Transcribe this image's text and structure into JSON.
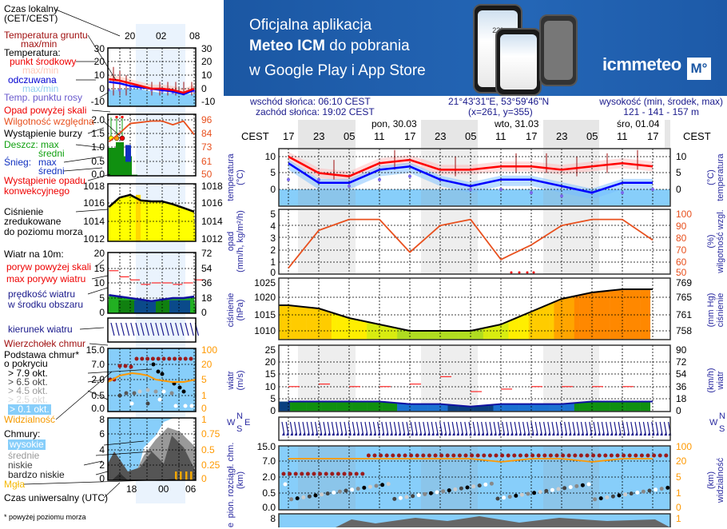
{
  "banner": {
    "line1": "Oficjalna aplikacja",
    "line2_bold": "Meteo ICM",
    "line2_rest": " do pobrania",
    "line3": "w Google Play i App Store",
    "logo": "icmmeteo",
    "logo_badge": "M°",
    "phone_temp": "23°"
  },
  "info": {
    "sunrise": "wschód słońca: 06:10 CEST",
    "sunset": "zachód słońca: 19:02 CEST",
    "coords": "21°43'31\"E, 53°59'46\"N",
    "grid": "(x=261,  y=355)",
    "elev_label": "wysokość (min, środek, max)",
    "elev_values": "121 - 141 - 157 m"
  },
  "time_axis": {
    "zone": "CEST",
    "days": [
      "pon, 30.03",
      "wto, 31.03",
      "śro, 01.04"
    ],
    "hours": [
      "17",
      "23",
      "05",
      "11",
      "17",
      "23",
      "05",
      "11",
      "17",
      "23",
      "05",
      "11",
      "17"
    ]
  },
  "axis_titles": {
    "left": [
      "temperatura\n(°C)",
      "opad\n(mm/h, kg/m²/h)",
      "ciśnienie\n(hPa)",
      "wiatr\n(m/s)",
      "pion. rozciągł. chm.\n(km)",
      "e"
    ],
    "right": [
      "(°C)\ntemperatura",
      "(%)\nwilgotność wzgl.",
      "(mm Hg)\nciśnienie",
      "(km/h)\nwiatr",
      "(km)\nwidzialność"
    ],
    "rose": [
      "W",
      "N",
      "E",
      "S"
    ]
  },
  "legend": {
    "local_time": "Czas lokalny",
    "local_zone": "(CET/CEST)",
    "ground_temp": "Temperatura gruntu",
    "ground_maxmin": "max/min",
    "temperature": "Temperatura:",
    "midpoint": "punkt środkowy",
    "t_maxmin": "max/min",
    "feels": "odczuwana",
    "f_maxmin": "max/min",
    "dew": "Temp. punktu rosy",
    "precip_over": "Opad powyżej skali",
    "humidity": "Wilgotność względna",
    "storm": "Wystąpienie burzy",
    "rain_max": "Deszcz: max",
    "rain_avg": "średni",
    "snow": "Śnieg:",
    "snow_max": "max",
    "snow_avg": "średni",
    "convective": "Wystąpienie opadu",
    "convective2": "konwekcyjnego",
    "pressure1": "Ciśnienie",
    "pressure2": "zredukowane",
    "pressure3": "do poziomu morza",
    "wind": "Wiatr na 10m:",
    "gust_over": "poryw powyżej skali",
    "gust_max": "max porywy wiatru",
    "wind_speed": "prędkość wiatru",
    "wind_speed2": "w środku obszaru",
    "wind_dir": "kierunek wiatru",
    "cloud_top": "Wierzchołek chmur",
    "cloud_base": "Podstawa chmur*",
    "cloud_base2": "o pokryciu",
    "okt": [
      "> 7.9 okt.",
      "> 6.5 okt.",
      "> 4.5 okt.",
      "> 2.5 okt.",
      "> 0.1 okt."
    ],
    "visibility": "Widzialność",
    "clouds": "Chmury:",
    "high": "wysokie",
    "mid": "średnie",
    "low": "niskie",
    "vlow": "bardzo niskie",
    "fog": "Mgła",
    "utc": "Czas uniwersalny (UTC)",
    "footnote": "* powyżej poziomu morza"
  },
  "colors": {
    "temp": "#ff0000",
    "feels": "#0000ff",
    "dew": "#7b68ee",
    "humidity": "#e8501e",
    "rain": "#109010",
    "snow": "#1030c0",
    "pressure_fill": "#ffff00",
    "wind_fill": "#109010",
    "gust": "#ff0000",
    "cloud_bg": "#87cefa",
    "visibility": "#ff9900"
  },
  "chart_data": [
    {
      "type": "line",
      "name": "mini-meteogram",
      "x_local": [
        "20",
        "02",
        "08"
      ],
      "x_utc": [
        "18",
        "00",
        "06"
      ],
      "hours": [
        16,
        18,
        20,
        22,
        0,
        2,
        4,
        6,
        8
      ],
      "temperature": {
        "left_ticks": [
          "30",
          "20",
          "10",
          "0",
          "-10"
        ],
        "ylim": [
          -10,
          30
        ],
        "mid": [
          7,
          6,
          4,
          2,
          0,
          0,
          -1,
          -3,
          0
        ],
        "feels": [
          5,
          4,
          2,
          1,
          0,
          -1,
          -2,
          -4,
          -1
        ],
        "dew": [
          -1,
          -1,
          0,
          0,
          -1,
          -2,
          -3,
          -4,
          -2
        ]
      },
      "precip": {
        "left_ticks": [
          "2.0",
          "1.5",
          "1.0",
          "0.5",
          "0.0"
        ],
        "right_ticks": [
          "96",
          "84",
          "73",
          "61",
          "50"
        ],
        "humidity": [
          78,
          85,
          93,
          94,
          95,
          95,
          92,
          95,
          84
        ],
        "rain": [
          1.0,
          1.15,
          0.7,
          0.05,
          0,
          0,
          0,
          0,
          0
        ]
      },
      "pressure": {
        "ticks": [
          "1018",
          "1016",
          "1014",
          "1012"
        ],
        "values": [
          1015.5,
          1016.5,
          1016.8,
          1016.2,
          1016.1,
          1016.1,
          1015.8,
          1015.4,
          1015.0
        ]
      },
      "wind": {
        "left_ticks": [
          "20",
          "15",
          "10",
          "5",
          "0"
        ],
        "right_ticks": [
          "72",
          "54",
          "36",
          "18",
          "0"
        ],
        "speed": [
          6,
          5.5,
          5,
          4.5,
          4,
          4.5,
          5,
          5,
          5.5
        ],
        "gusts": [
          14,
          12,
          11,
          9.5,
          10,
          10,
          9.5,
          10,
          11
        ]
      },
      "cloud_base": {
        "left_ticks": [
          "15.0",
          "7.0",
          "2.0",
          "0.5",
          "0.0"
        ],
        "right_ticks": [
          "100",
          "20",
          "5",
          "1",
          "0"
        ],
        "visibility": [
          3,
          7,
          10,
          10,
          6,
          5,
          4,
          4,
          5
        ]
      },
      "clouds": {
        "left_ticks": [
          "8",
          "6",
          "4",
          "2",
          "0"
        ],
        "right_ticks": [
          "1",
          "0.75",
          "0.5",
          "0.25",
          "0"
        ]
      }
    },
    {
      "type": "line",
      "name": "main-meteogram",
      "hours": [
        "17",
        "23",
        "05",
        "11",
        "17",
        "23",
        "05",
        "11",
        "17",
        "23",
        "05",
        "11",
        "17"
      ],
      "temperature": {
        "ticks": [
          "10",
          "5",
          "0"
        ],
        "ylim": [
          -5,
          13
        ],
        "mid": [
          10,
          5,
          4,
          8,
          9,
          6,
          6,
          7,
          7,
          6,
          7,
          8,
          7
        ],
        "feels": [
          8,
          2,
          2,
          6,
          7,
          3,
          1,
          3,
          3,
          1,
          -1,
          2,
          2
        ],
        "dew": [
          3,
          3,
          1,
          3,
          4,
          3,
          0,
          0,
          -1,
          -2,
          -1,
          -1,
          0
        ]
      },
      "precip": {
        "ticks": [
          "5",
          "4",
          "3",
          "2",
          "1",
          "0"
        ],
        "ylim": [
          0,
          5
        ],
        "humidity_ticks": [
          "100",
          "90",
          "80",
          "70",
          "60",
          "50"
        ],
        "humidity": [
          55,
          86,
          95,
          95,
          68,
          90,
          95,
          62,
          74,
          90,
          95,
          95,
          78
        ]
      },
      "pressure": {
        "ticks": [
          "1025",
          "1020",
          "1015",
          "1010"
        ],
        "mmhg_ticks": [
          "769",
          "765",
          "761",
          "758"
        ],
        "ylim": [
          1007,
          1026
        ],
        "values": [
          1018,
          1017,
          1014,
          1012,
          1010,
          1010,
          1010,
          1012,
          1016,
          1020,
          1022,
          1023,
          1023
        ]
      },
      "wind": {
        "ticks": [
          "25",
          "20",
          "15",
          "10",
          "5",
          "0"
        ],
        "kmh_ticks": [
          "90",
          "72",
          "54",
          "36",
          "18",
          "0"
        ],
        "ylim": [
          0,
          25
        ],
        "speed": [
          4,
          4,
          4,
          4,
          3,
          3,
          2,
          3,
          3,
          3,
          4,
          4,
          4
        ],
        "gusts": [
          10,
          11,
          10,
          10,
          11,
          14,
          8,
          9,
          10,
          10,
          10,
          10,
          8
        ]
      },
      "cloud_base": {
        "ticks": [
          "15.0",
          "7.0",
          "2.0",
          "0.5",
          "0.0"
        ],
        "vis_ticks": [
          "100",
          "20",
          "5",
          "1",
          "0"
        ],
        "visibility": [
          20,
          15,
          20,
          20,
          20,
          20,
          20,
          10,
          15,
          20,
          10,
          20,
          20
        ]
      },
      "clouds": {
        "ticks": [
          "8"
        ],
        "right_ticks": [
          "1"
        ]
      }
    }
  ]
}
